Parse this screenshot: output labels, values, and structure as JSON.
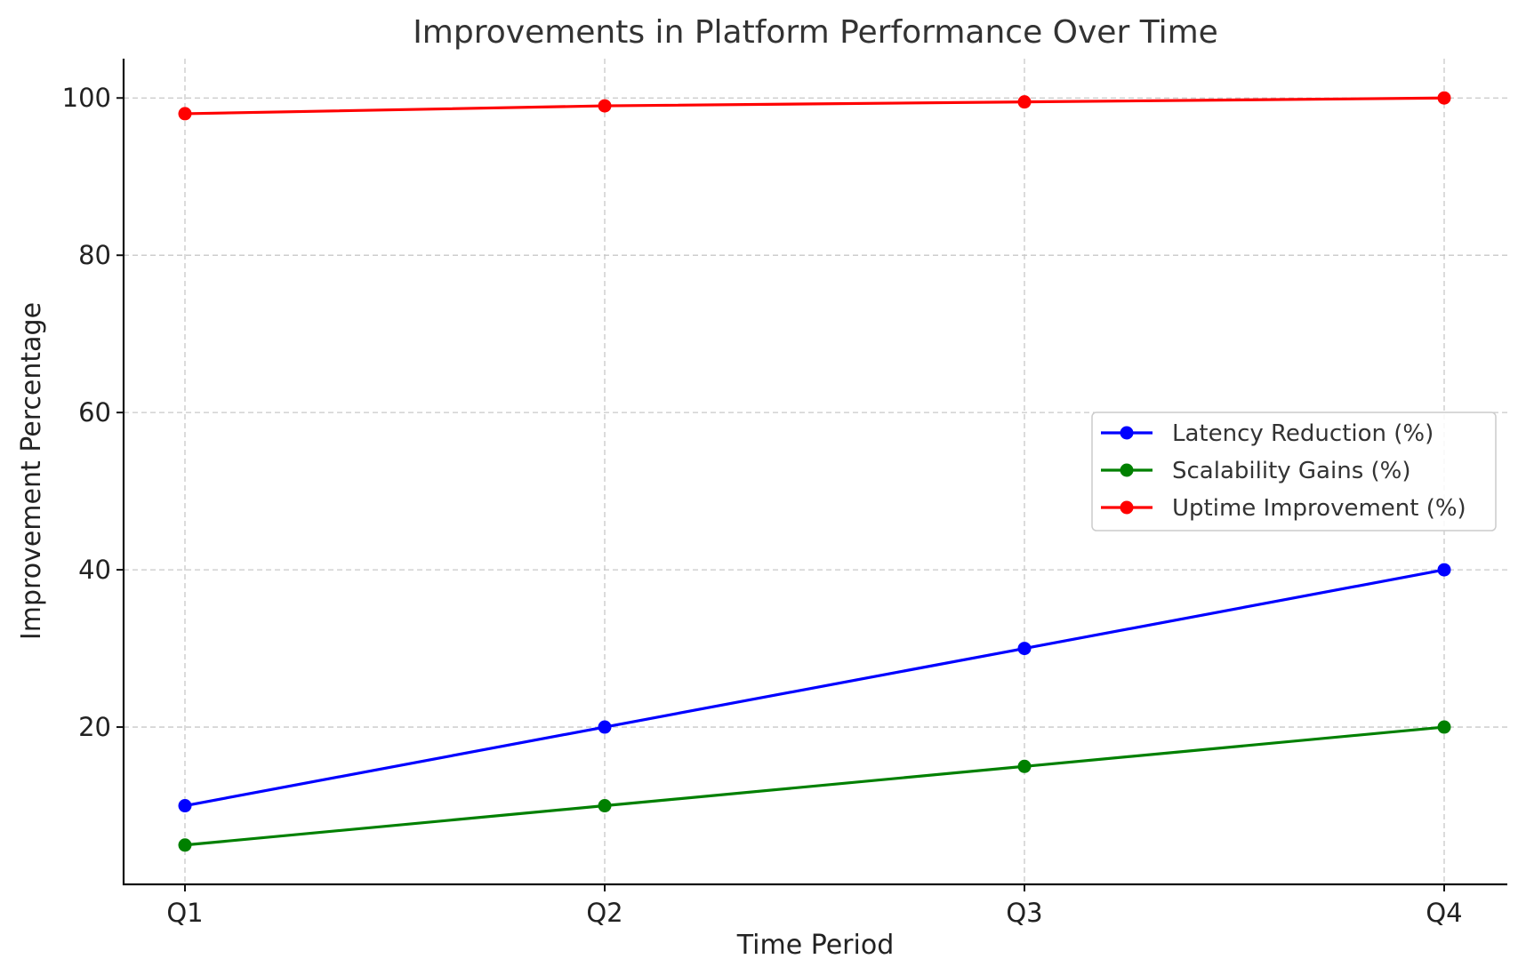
{
  "chart_data": {
    "type": "line",
    "title": "Improvements in Platform Performance Over Time",
    "xlabel": "Time Period",
    "ylabel": "Improvement Percentage",
    "categories": [
      "Q1",
      "Q2",
      "Q3",
      "Q4"
    ],
    "yticks": [
      20,
      40,
      60,
      80,
      100
    ],
    "ylim": [
      0,
      105
    ],
    "grid": true,
    "legend_position": "center-right",
    "series": [
      {
        "name": "Latency Reduction (%)",
        "color": "#0000ff",
        "values": [
          10,
          20,
          30,
          40
        ]
      },
      {
        "name": "Scalability Gains (%)",
        "color": "#008000",
        "values": [
          5,
          10,
          15,
          20
        ]
      },
      {
        "name": "Uptime Improvement (%)",
        "color": "#ff0000",
        "values": [
          98,
          99,
          99.5,
          100
        ]
      }
    ]
  }
}
